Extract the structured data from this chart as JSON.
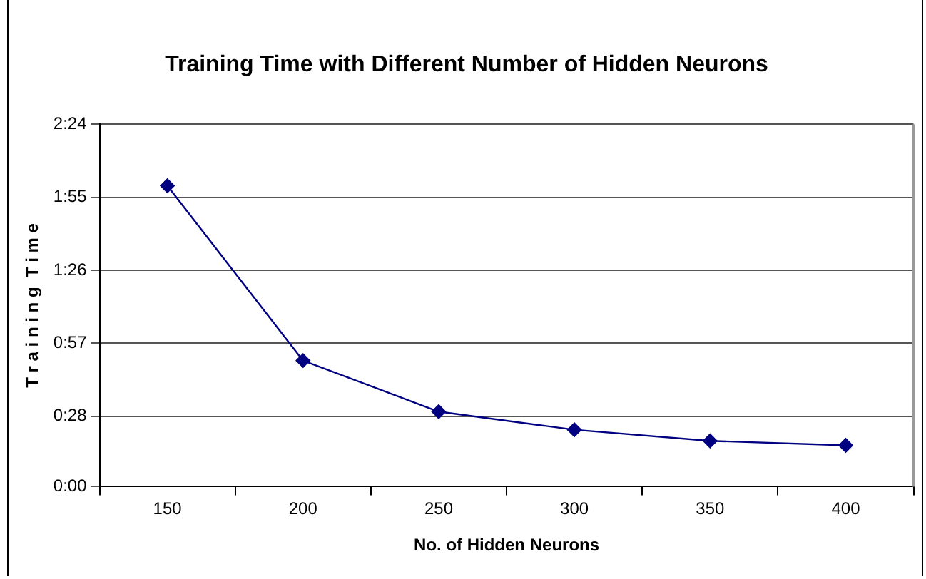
{
  "chart_data": {
    "type": "line",
    "title": "Training Time with Different Number of Hidden Neurons",
    "xlabel": "No. of Hidden Neurons",
    "ylabel": "T r a i n i n g  T i m e",
    "categories": [
      "150",
      "200",
      "250",
      "300",
      "350",
      "400"
    ],
    "series": [
      {
        "color": "#000080",
        "values": [
          119.6,
          50.1,
          29.8,
          22.6,
          18.2,
          16.4
        ]
      }
    ],
    "ylim": [
      0,
      144
    ],
    "yticks": [
      {
        "value": 0,
        "label": "0:00"
      },
      {
        "value": 28,
        "label": "0:28"
      },
      {
        "value": 57,
        "label": "0:57"
      },
      {
        "value": 86,
        "label": "1:26"
      },
      {
        "value": 115,
        "label": "1:55"
      },
      {
        "value": 144,
        "label": "2:24"
      }
    ],
    "grid": "y",
    "legend": false,
    "marker": "diamond",
    "line_style": "solid"
  }
}
